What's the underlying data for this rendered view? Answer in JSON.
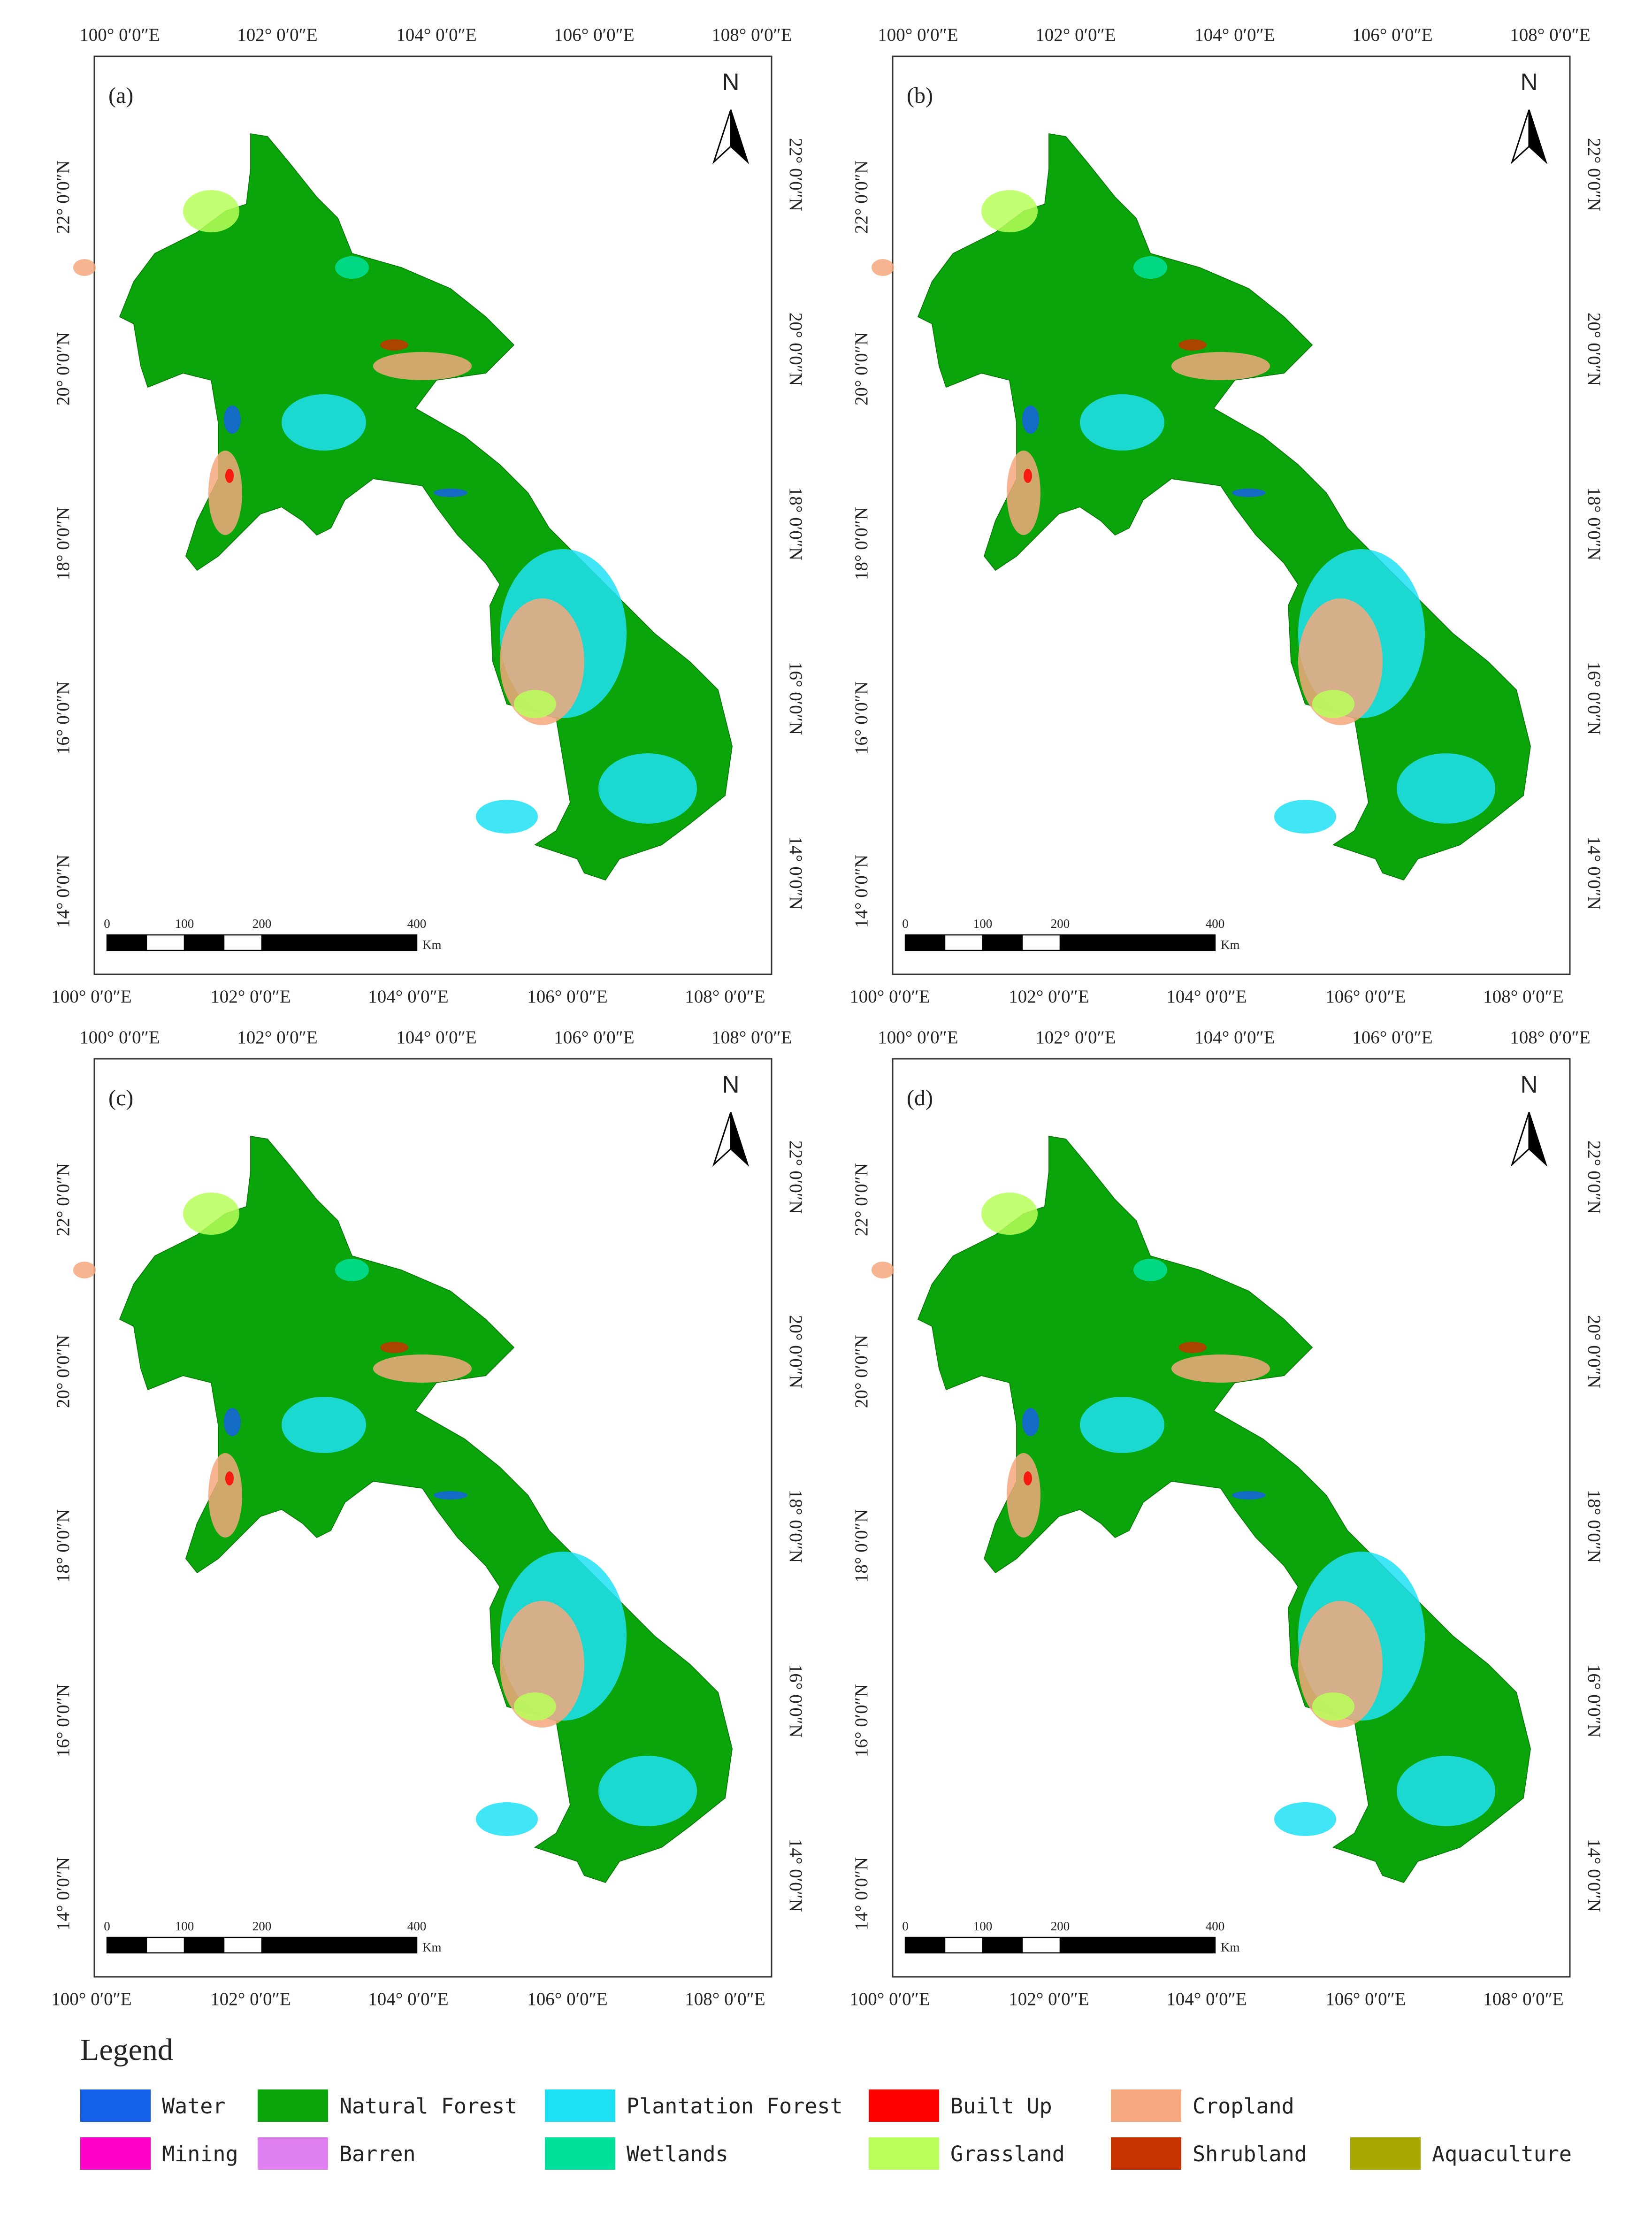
{
  "lon_ticks": [
    "100° 0′0″E",
    "102° 0′0″E",
    "104° 0′0″E",
    "106° 0′0″E",
    "108° 0′0″E"
  ],
  "lat_ticks": [
    "22° 0′0″N",
    "20° 0′0″N",
    "18° 0′0″N",
    "16° 0′0″N",
    "14° 0′0″N"
  ],
  "north": "N",
  "scale_bar": {
    "labels": [
      "0",
      "100",
      "200",
      "400"
    ],
    "unit": "Km"
  },
  "panels": [
    {
      "label": "(a)"
    },
    {
      "label": "(b)"
    },
    {
      "label": "(c)"
    },
    {
      "label": "(d)"
    }
  ],
  "legend": {
    "title": "Legend",
    "items": [
      {
        "name": "Water",
        "color": "#1560e8"
      },
      {
        "name": "Natural Forest",
        "color": "#0aa50a"
      },
      {
        "name": "Plantation Forest",
        "color": "#1ee0f5"
      },
      {
        "name": "Built Up",
        "color": "#ff0000"
      },
      {
        "name": "Cropland",
        "color": "#f5a87d"
      },
      {
        "name": "Mining",
        "color": "#ff00c8"
      },
      {
        "name": "Barren",
        "color": "#e07ff0"
      },
      {
        "name": "Wetlands",
        "color": "#00e09a"
      },
      {
        "name": "Grassland",
        "color": "#b8ff5a"
      },
      {
        "name": "Shrubland",
        "color": "#c83200"
      },
      {
        "name": "Aquaculture",
        "color": "#a8a800"
      }
    ]
  }
}
